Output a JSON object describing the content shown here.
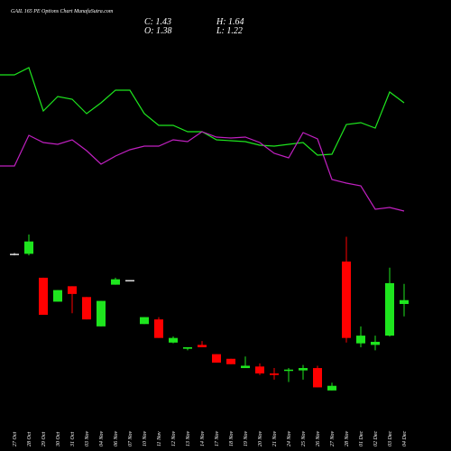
{
  "chart_data": {
    "type": "candlestick",
    "title": "GAIL 165 PE Options Chart MunafaSutra.com",
    "header": {
      "close": "C: 1.43",
      "high": "H: 1.64",
      "open": "O: 1.38",
      "low": "L: 1.22"
    },
    "categories": [
      "27 Oct",
      "28 Oct",
      "29 Oct",
      "30 Oct",
      "31 Oct",
      "03 Nov",
      "04 Nov",
      "06 Nov",
      "07 Nov",
      "10 Nov",
      "11 Nov",
      "12 Nov",
      "13 Nov",
      "14 Nov",
      "17 Nov",
      "18 Nov",
      "19 Nov",
      "20 Nov",
      "21 Nov",
      "24 Nov",
      "25 Nov",
      "26 Nov",
      "27 Nov",
      "28 Nov",
      "01 Dec",
      "02 Dec",
      "03 Dec",
      "04 Dec"
    ],
    "open": [
      2.03,
      2.03,
      1.72,
      1.41,
      1.61,
      1.47,
      1.09,
      1.63,
      1.69,
      1.12,
      1.18,
      0.88,
      0.8,
      0.85,
      0.73,
      0.67,
      0.55,
      0.57,
      0.48,
      0.52,
      0.52,
      0.55,
      0.26,
      1.93,
      0.87,
      0.85,
      0.97,
      1.38
    ],
    "high": [
      2.04,
      2.28,
      1.72,
      1.56,
      1.61,
      1.47,
      1.42,
      1.72,
      1.69,
      1.21,
      1.21,
      0.96,
      0.82,
      0.9,
      0.73,
      0.67,
      0.7,
      0.61,
      0.55,
      0.55,
      0.59,
      0.58,
      0.36,
      2.25,
      1.09,
      0.97,
      1.85,
      1.64
    ],
    "low": [
      2.01,
      2.01,
      1.24,
      1.41,
      1.26,
      1.18,
      1.09,
      1.63,
      1.69,
      1.12,
      0.94,
      0.87,
      0.78,
      0.82,
      0.62,
      0.6,
      0.55,
      0.46,
      0.4,
      0.37,
      0.4,
      0.3,
      0.26,
      0.88,
      0.82,
      0.78,
      0.96,
      1.22
    ],
    "close": [
      2.03,
      2.19,
      1.24,
      1.56,
      1.51,
      1.18,
      1.42,
      1.7,
      1.69,
      1.21,
      0.94,
      0.94,
      0.82,
      0.82,
      0.62,
      0.6,
      0.58,
      0.48,
      0.46,
      0.53,
      0.55,
      0.3,
      0.32,
      0.94,
      0.97,
      0.89,
      1.65,
      1.43
    ],
    "up_color": "#1ee51e",
    "down_color": "#ff0000",
    "flat_color": "#dddddd",
    "ylim": [
      0.2,
      2.35
    ],
    "series": [
      {
        "color": "#1ee51e",
        "values": [
          167,
          175,
          127,
          143,
          140,
          124,
          136,
          150,
          150,
          124,
          111,
          111,
          104,
          104,
          95,
          94,
          93,
          89,
          88,
          90,
          92,
          78,
          79,
          112,
          114,
          108,
          148,
          136
        ]
      },
      {
        "color": "#c020c0",
        "values": [
          66,
          100,
          92,
          90,
          95,
          83,
          68,
          77,
          84,
          88,
          88,
          95,
          93,
          104,
          98,
          97,
          98,
          92,
          80,
          75,
          103,
          96,
          51,
          47,
          44,
          18,
          20,
          16
        ]
      }
    ],
    "y2lim": [
      0,
      200
    ]
  }
}
